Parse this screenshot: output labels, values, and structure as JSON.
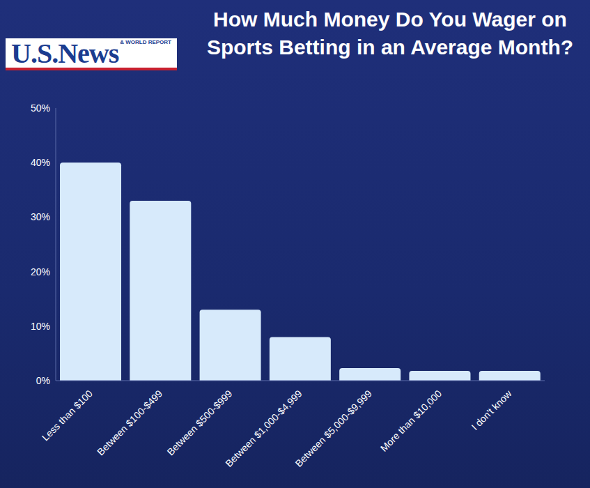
{
  "chart_data": {
    "type": "bar",
    "title": "How Much Money Do You Wager on Sports Betting in an Average Month?",
    "logo": {
      "text": "U.S.News",
      "subtext": "& WORLD REPORT"
    },
    "categories": [
      "Less than $100",
      "Between $100-$499",
      "Between $500-$999",
      "Between $1,000-$4,999",
      "Between $5,000-$9,999",
      "More than $10,000",
      "I don't know"
    ],
    "values": [
      40,
      33,
      13,
      8,
      2.3,
      1.8,
      1.8
    ],
    "color": "#d7eafb",
    "ylim": [
      0,
      50
    ],
    "yticks": [
      {
        "value": 0,
        "label": "0%"
      },
      {
        "value": 10,
        "label": "10%"
      },
      {
        "value": 20,
        "label": "20%"
      },
      {
        "value": 30,
        "label": "30%"
      },
      {
        "value": 40,
        "label": "40%"
      },
      {
        "value": 50,
        "label": "50%"
      }
    ],
    "grid": false
  }
}
